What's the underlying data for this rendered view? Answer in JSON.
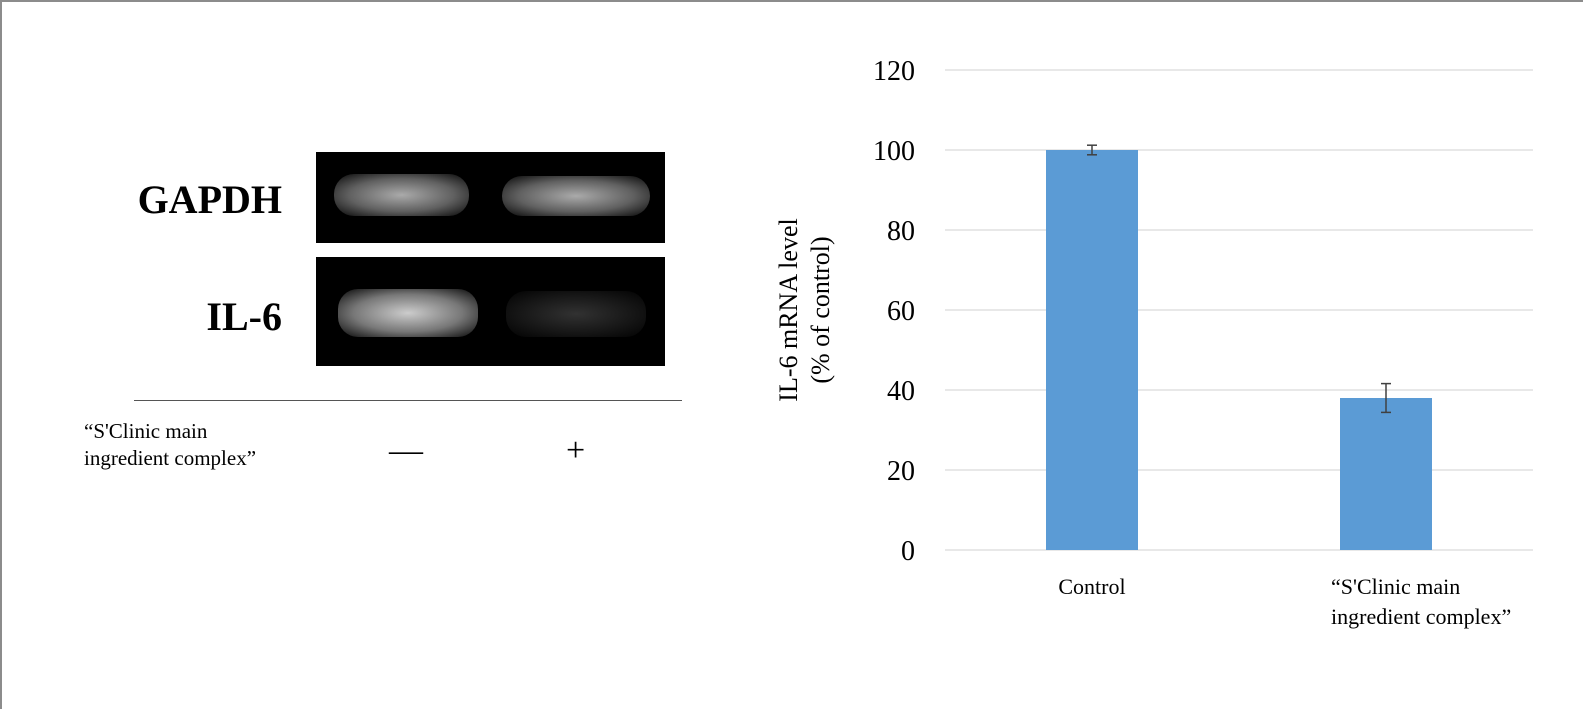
{
  "gel": {
    "rows": [
      {
        "label": "GAPDH",
        "band_intensity": [
          0.75,
          0.75
        ]
      },
      {
        "label": "IL-6",
        "band_intensity": [
          0.85,
          0.25
        ]
      }
    ],
    "treatment_label_line1": "“S'Clinic main",
    "treatment_label_line2": "ingredient complex”",
    "lane_signs": [
      "—",
      "+"
    ]
  },
  "chart_data": {
    "type": "bar",
    "categories": [
      "Control",
      "“S'Clinic main ingredient complex”"
    ],
    "category_lines": [
      [
        "Control"
      ],
      [
        "“S'Clinic main",
        "ingredient complex”"
      ]
    ],
    "values": [
      100,
      38
    ],
    "error": [
      1.2,
      3.6
    ],
    "ylabel_line1": "IL-6 mRNA level",
    "ylabel_line2": "(% of control)",
    "ylim": [
      0,
      120
    ],
    "yticks": [
      "0",
      "20",
      "40",
      "60",
      "80",
      "100",
      "120"
    ],
    "grid": true,
    "bar_color": "#5b9bd5",
    "grid_color": "#d9d9d9",
    "error_color": "#404040"
  }
}
